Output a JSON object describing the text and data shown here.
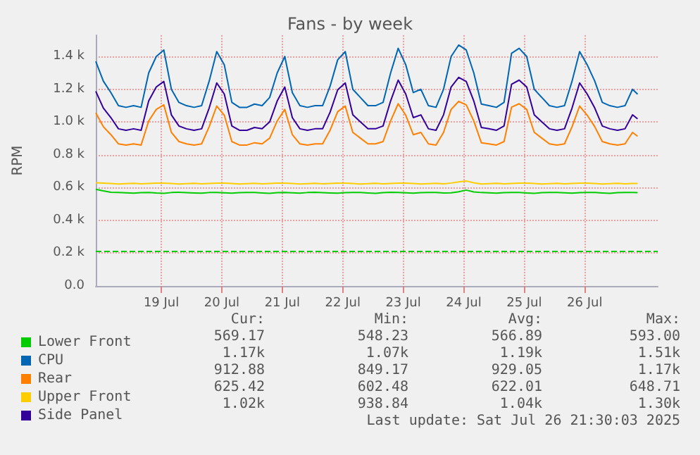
{
  "chart_data": {
    "type": "line",
    "title": "Fans - by week",
    "ylabel": "RPM",
    "x": [
      "2025-07-17T22:00",
      "2025-07-18T01:00",
      "2025-07-18T04:00",
      "2025-07-18T07:00",
      "2025-07-18T10:00",
      "2025-07-18T13:00",
      "2025-07-18T16:00",
      "2025-07-18T19:00",
      "2025-07-18T22:00",
      "2025-07-19T01:00",
      "2025-07-19T04:00",
      "2025-07-19T07:00",
      "2025-07-19T10:00",
      "2025-07-19T13:00",
      "2025-07-19T16:00",
      "2025-07-19T19:00",
      "2025-07-19T22:00",
      "2025-07-20T01:00",
      "2025-07-20T04:00",
      "2025-07-20T07:00",
      "2025-07-20T10:00",
      "2025-07-20T13:00",
      "2025-07-20T16:00",
      "2025-07-20T19:00",
      "2025-07-20T22:00",
      "2025-07-21T01:00",
      "2025-07-21T04:00",
      "2025-07-21T07:00",
      "2025-07-21T10:00",
      "2025-07-21T13:00",
      "2025-07-21T16:00",
      "2025-07-21T19:00",
      "2025-07-21T22:00",
      "2025-07-22T01:00",
      "2025-07-22T04:00",
      "2025-07-22T07:00",
      "2025-07-22T10:00",
      "2025-07-22T13:00",
      "2025-07-22T16:00",
      "2025-07-22T19:00",
      "2025-07-22T22:00",
      "2025-07-23T01:00",
      "2025-07-23T04:00",
      "2025-07-23T07:00",
      "2025-07-23T10:00",
      "2025-07-23T13:00",
      "2025-07-23T16:00",
      "2025-07-23T19:00",
      "2025-07-23T22:00",
      "2025-07-24T01:00",
      "2025-07-24T04:00",
      "2025-07-24T07:00",
      "2025-07-24T10:00",
      "2025-07-24T13:00",
      "2025-07-24T16:00",
      "2025-07-24T19:00",
      "2025-07-24T22:00",
      "2025-07-25T01:00",
      "2025-07-25T04:00",
      "2025-07-25T07:00",
      "2025-07-25T10:00",
      "2025-07-25T13:00",
      "2025-07-25T16:00",
      "2025-07-25T19:00",
      "2025-07-25T22:00",
      "2025-07-26T01:00",
      "2025-07-26T04:00",
      "2025-07-26T07:00",
      "2025-07-26T10:00",
      "2025-07-26T13:00",
      "2025-07-26T16:00",
      "2025-07-26T19:00",
      "2025-07-26T21:00"
    ],
    "series": [
      {
        "name": "Lower Front",
        "color": "#00cc00",
        "values": [
          590,
          580,
          572,
          570,
          568,
          566,
          569,
          571,
          567,
          565,
          570,
          572,
          569,
          567,
          566,
          570,
          571,
          568,
          566,
          569,
          571,
          570,
          567,
          565,
          569,
          570,
          568,
          566,
          570,
          572,
          569,
          567,
          566,
          569,
          571,
          570,
          567,
          565,
          569,
          572,
          570,
          568,
          566,
          569,
          571,
          570,
          567,
          568,
          575,
          585,
          574,
          570,
          568,
          566,
          569,
          571,
          570,
          567,
          565,
          569,
          571,
          570,
          568,
          566,
          569,
          571,
          570,
          567,
          565,
          569,
          571,
          570,
          569
        ]
      },
      {
        "name": "CPU",
        "color": "#0066b3",
        "values": [
          1370,
          1250,
          1180,
          1100,
          1090,
          1100,
          1090,
          1300,
          1400,
          1440,
          1200,
          1120,
          1100,
          1090,
          1100,
          1250,
          1430,
          1350,
          1120,
          1090,
          1090,
          1110,
          1100,
          1150,
          1300,
          1400,
          1180,
          1100,
          1090,
          1100,
          1100,
          1220,
          1380,
          1430,
          1200,
          1150,
          1100,
          1100,
          1120,
          1300,
          1450,
          1350,
          1180,
          1200,
          1100,
          1090,
          1200,
          1400,
          1470,
          1440,
          1300,
          1110,
          1100,
          1090,
          1120,
          1420,
          1450,
          1400,
          1200,
          1150,
          1100,
          1090,
          1100,
          1250,
          1430,
          1350,
          1250,
          1120,
          1100,
          1090,
          1100,
          1200,
          1170
        ]
      },
      {
        "name": "Rear",
        "color": "#ff8000",
        "values": [
          1056,
          972,
          923,
          867,
          860,
          867,
          860,
          1007,
          1077,
          1105,
          937,
          881,
          867,
          860,
          867,
          972,
          1098,
          1042,
          881,
          860,
          860,
          874,
          867,
          902,
          1007,
          1077,
          923,
          867,
          860,
          867,
          867,
          951,
          1063,
          1098,
          937,
          902,
          867,
          867,
          881,
          1007,
          1112,
          1042,
          923,
          937,
          867,
          860,
          937,
          1077,
          1126,
          1105,
          1007,
          874,
          867,
          860,
          881,
          1091,
          1112,
          1077,
          937,
          902,
          867,
          860,
          867,
          972,
          1098,
          1042,
          972,
          881,
          867,
          860,
          867,
          937,
          913
        ]
      },
      {
        "name": "Upper Front",
        "color": "#ffcc00",
        "values": [
          630,
          628,
          625,
          622,
          624,
          626,
          623,
          625,
          627,
          628,
          625,
          622,
          624,
          626,
          623,
          625,
          627,
          628,
          625,
          622,
          624,
          626,
          623,
          625,
          627,
          628,
          625,
          622,
          624,
          626,
          623,
          625,
          627,
          628,
          625,
          622,
          624,
          626,
          623,
          625,
          627,
          628,
          625,
          622,
          624,
          626,
          623,
          628,
          635,
          640,
          630,
          622,
          624,
          626,
          623,
          625,
          627,
          628,
          625,
          622,
          624,
          626,
          623,
          625,
          627,
          628,
          625,
          622,
          624,
          626,
          623,
          625,
          625
        ]
      },
      {
        "name": "Side Panel",
        "color": "#330099",
        "values": [
          1188,
          1086,
          1027,
          959,
          950,
          959,
          950,
          1129,
          1214,
          1248,
          1044,
          976,
          959,
          950,
          959,
          1086,
          1239,
          1171,
          976,
          950,
          950,
          967,
          959,
          1001,
          1129,
          1214,
          1027,
          959,
          950,
          959,
          959,
          1061,
          1197,
          1239,
          1044,
          1001,
          959,
          959,
          976,
          1129,
          1256,
          1171,
          1027,
          1044,
          959,
          950,
          1044,
          1214,
          1273,
          1248,
          1129,
          967,
          959,
          950,
          976,
          1231,
          1256,
          1214,
          1044,
          1001,
          959,
          950,
          959,
          1086,
          1239,
          1171,
          1086,
          976,
          959,
          950,
          959,
          1044,
          1020
        ]
      }
    ],
    "xlim": [
      "2025-07-17T22:00",
      "2025-07-27T05:00"
    ],
    "xticks": [
      {
        "value": "2025-07-19",
        "label": "19 Jul"
      },
      {
        "value": "2025-07-20",
        "label": "20 Jul"
      },
      {
        "value": "2025-07-21",
        "label": "21 Jul"
      },
      {
        "value": "2025-07-22",
        "label": "22 Jul"
      },
      {
        "value": "2025-07-23",
        "label": "23 Jul"
      },
      {
        "value": "2025-07-24",
        "label": "24 Jul"
      },
      {
        "value": "2025-07-25",
        "label": "25 Jul"
      },
      {
        "value": "2025-07-26",
        "label": "26 Jul"
      }
    ],
    "ylim": [
      0,
      1530
    ],
    "yticks": [
      {
        "value": 0,
        "label": "0.0"
      },
      {
        "value": 200,
        "label": "0.2 k"
      },
      {
        "value": 400,
        "label": "0.4 k"
      },
      {
        "value": 600,
        "label": "0.6 k"
      },
      {
        "value": 800,
        "label": "0.8 k"
      },
      {
        "value": 1000,
        "label": "1.0 k"
      },
      {
        "value": 1200,
        "label": "1.2 k"
      },
      {
        "value": 1400,
        "label": "1.4 k"
      }
    ],
    "ref_lines": [
      {
        "axis": "y",
        "value": 215,
        "label": null,
        "color": "#00cc00",
        "line_style": "dashed"
      }
    ],
    "grid": true,
    "legend": "bottom left",
    "marker": "none",
    "line_style": "solid",
    "annotations": [
      "Cur:",
      "Min:",
      "Avg:",
      "Max:",
      "569.17",
      "548.23",
      "566.89",
      "593.00",
      "1.17k",
      "1.07k",
      "1.19k",
      "1.51k",
      "912.88",
      "849.17",
      "929.05",
      "1.17k",
      "625.42",
      "602.48",
      "622.01",
      "648.71",
      "1.02k",
      "938.84",
      "1.04k",
      "1.30k",
      "Last update: Sat Jul 26 21:30:03 2025"
    ]
  }
}
